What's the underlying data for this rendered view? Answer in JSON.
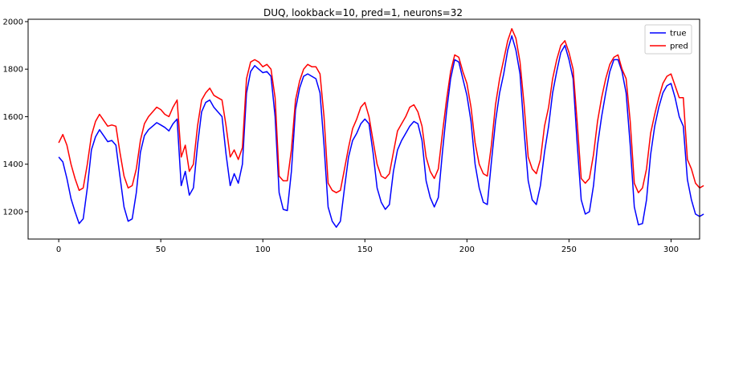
{
  "chart_data": {
    "type": "line",
    "title": "DUQ, lookback=10, pred=1, neurons=32",
    "xlabel": "",
    "ylabel": "",
    "xlim": [
      -15,
      314
    ],
    "ylim": [
      1085,
      2010
    ],
    "xticks": [
      0,
      50,
      100,
      150,
      200,
      250,
      300
    ],
    "yticks": [
      1200,
      1400,
      1600,
      1800,
      2000
    ],
    "grid": false,
    "legend_position": "top-right",
    "series": [
      {
        "name": "true",
        "color": "#0000ff",
        "points": [
          [
            0,
            1430
          ],
          [
            2,
            1410
          ],
          [
            4,
            1340
          ],
          [
            6,
            1255
          ],
          [
            8,
            1200
          ],
          [
            10,
            1150
          ],
          [
            12,
            1170
          ],
          [
            14,
            1300
          ],
          [
            16,
            1460
          ],
          [
            18,
            1515
          ],
          [
            20,
            1545
          ],
          [
            22,
            1520
          ],
          [
            24,
            1495
          ],
          [
            26,
            1500
          ],
          [
            28,
            1480
          ],
          [
            30,
            1350
          ],
          [
            32,
            1220
          ],
          [
            34,
            1160
          ],
          [
            36,
            1170
          ],
          [
            38,
            1280
          ],
          [
            40,
            1450
          ],
          [
            42,
            1520
          ],
          [
            44,
            1545
          ],
          [
            46,
            1560
          ],
          [
            48,
            1575
          ],
          [
            50,
            1565
          ],
          [
            52,
            1555
          ],
          [
            54,
            1540
          ],
          [
            56,
            1570
          ],
          [
            58,
            1590
          ],
          [
            60,
            1310
          ],
          [
            62,
            1370
          ],
          [
            64,
            1270
          ],
          [
            66,
            1300
          ],
          [
            68,
            1480
          ],
          [
            70,
            1620
          ],
          [
            72,
            1660
          ],
          [
            74,
            1670
          ],
          [
            76,
            1640
          ],
          [
            78,
            1620
          ],
          [
            80,
            1600
          ],
          [
            82,
            1440
          ],
          [
            84,
            1310
          ],
          [
            86,
            1360
          ],
          [
            88,
            1320
          ],
          [
            90,
            1400
          ],
          [
            92,
            1700
          ],
          [
            94,
            1790
          ],
          [
            96,
            1815
          ],
          [
            98,
            1800
          ],
          [
            100,
            1785
          ],
          [
            102,
            1790
          ],
          [
            104,
            1770
          ],
          [
            106,
            1600
          ],
          [
            108,
            1280
          ],
          [
            110,
            1210
          ],
          [
            112,
            1205
          ],
          [
            114,
            1370
          ],
          [
            116,
            1630
          ],
          [
            118,
            1720
          ],
          [
            120,
            1770
          ],
          [
            122,
            1780
          ],
          [
            124,
            1770
          ],
          [
            126,
            1760
          ],
          [
            128,
            1700
          ],
          [
            130,
            1480
          ],
          [
            132,
            1220
          ],
          [
            134,
            1160
          ],
          [
            136,
            1135
          ],
          [
            138,
            1160
          ],
          [
            140,
            1300
          ],
          [
            142,
            1430
          ],
          [
            144,
            1500
          ],
          [
            146,
            1530
          ],
          [
            148,
            1570
          ],
          [
            150,
            1590
          ],
          [
            152,
            1570
          ],
          [
            154,
            1450
          ],
          [
            156,
            1300
          ],
          [
            158,
            1240
          ],
          [
            160,
            1210
          ],
          [
            162,
            1230
          ],
          [
            164,
            1370
          ],
          [
            166,
            1460
          ],
          [
            168,
            1500
          ],
          [
            170,
            1530
          ],
          [
            172,
            1560
          ],
          [
            174,
            1580
          ],
          [
            176,
            1570
          ],
          [
            178,
            1500
          ],
          [
            180,
            1330
          ],
          [
            182,
            1260
          ],
          [
            184,
            1220
          ],
          [
            186,
            1260
          ],
          [
            188,
            1450
          ],
          [
            190,
            1620
          ],
          [
            192,
            1760
          ],
          [
            194,
            1840
          ],
          [
            196,
            1830
          ],
          [
            198,
            1760
          ],
          [
            200,
            1690
          ],
          [
            202,
            1580
          ],
          [
            204,
            1400
          ],
          [
            206,
            1300
          ],
          [
            208,
            1240
          ],
          [
            210,
            1230
          ],
          [
            212,
            1410
          ],
          [
            214,
            1580
          ],
          [
            216,
            1700
          ],
          [
            218,
            1780
          ],
          [
            220,
            1880
          ],
          [
            222,
            1940
          ],
          [
            224,
            1880
          ],
          [
            226,
            1780
          ],
          [
            228,
            1540
          ],
          [
            230,
            1330
          ],
          [
            232,
            1250
          ],
          [
            234,
            1230
          ],
          [
            236,
            1310
          ],
          [
            238,
            1450
          ],
          [
            240,
            1560
          ],
          [
            242,
            1700
          ],
          [
            244,
            1790
          ],
          [
            246,
            1870
          ],
          [
            248,
            1900
          ],
          [
            250,
            1840
          ],
          [
            252,
            1760
          ],
          [
            254,
            1490
          ],
          [
            256,
            1250
          ],
          [
            258,
            1190
          ],
          [
            260,
            1200
          ],
          [
            262,
            1310
          ],
          [
            264,
            1480
          ],
          [
            266,
            1600
          ],
          [
            268,
            1700
          ],
          [
            270,
            1790
          ],
          [
            272,
            1840
          ],
          [
            274,
            1840
          ],
          [
            276,
            1790
          ],
          [
            278,
            1700
          ],
          [
            280,
            1480
          ],
          [
            282,
            1220
          ],
          [
            284,
            1145
          ],
          [
            286,
            1150
          ],
          [
            288,
            1250
          ],
          [
            290,
            1440
          ],
          [
            292,
            1560
          ],
          [
            294,
            1640
          ],
          [
            296,
            1700
          ],
          [
            298,
            1730
          ],
          [
            300,
            1740
          ],
          [
            302,
            1680
          ],
          [
            304,
            1600
          ],
          [
            306,
            1560
          ],
          [
            308,
            1335
          ],
          [
            310,
            1250
          ],
          [
            312,
            1190
          ],
          [
            314,
            1180
          ],
          [
            316,
            1190
          ]
        ]
      },
      {
        "name": "pred",
        "color": "#ff0000",
        "points": [
          [
            0,
            1490
          ],
          [
            2,
            1525
          ],
          [
            4,
            1480
          ],
          [
            6,
            1400
          ],
          [
            8,
            1340
          ],
          [
            10,
            1290
          ],
          [
            12,
            1300
          ],
          [
            14,
            1400
          ],
          [
            16,
            1520
          ],
          [
            18,
            1580
          ],
          [
            20,
            1610
          ],
          [
            22,
            1585
          ],
          [
            24,
            1560
          ],
          [
            26,
            1565
          ],
          [
            28,
            1560
          ],
          [
            30,
            1450
          ],
          [
            32,
            1350
          ],
          [
            34,
            1300
          ],
          [
            36,
            1310
          ],
          [
            38,
            1380
          ],
          [
            40,
            1500
          ],
          [
            42,
            1570
          ],
          [
            44,
            1600
          ],
          [
            46,
            1620
          ],
          [
            48,
            1640
          ],
          [
            50,
            1630
          ],
          [
            52,
            1610
          ],
          [
            54,
            1600
          ],
          [
            56,
            1640
          ],
          [
            58,
            1670
          ],
          [
            60,
            1430
          ],
          [
            62,
            1480
          ],
          [
            64,
            1370
          ],
          [
            66,
            1400
          ],
          [
            68,
            1560
          ],
          [
            70,
            1670
          ],
          [
            72,
            1700
          ],
          [
            74,
            1720
          ],
          [
            76,
            1690
          ],
          [
            78,
            1680
          ],
          [
            80,
            1670
          ],
          [
            82,
            1560
          ],
          [
            84,
            1430
          ],
          [
            86,
            1460
          ],
          [
            88,
            1420
          ],
          [
            90,
            1470
          ],
          [
            92,
            1760
          ],
          [
            94,
            1830
          ],
          [
            96,
            1840
          ],
          [
            98,
            1830
          ],
          [
            100,
            1810
          ],
          [
            102,
            1820
          ],
          [
            104,
            1800
          ],
          [
            106,
            1680
          ],
          [
            108,
            1350
          ],
          [
            110,
            1330
          ],
          [
            112,
            1330
          ],
          [
            114,
            1460
          ],
          [
            116,
            1670
          ],
          [
            118,
            1750
          ],
          [
            120,
            1800
          ],
          [
            122,
            1820
          ],
          [
            124,
            1810
          ],
          [
            126,
            1810
          ],
          [
            128,
            1780
          ],
          [
            130,
            1600
          ],
          [
            132,
            1320
          ],
          [
            134,
            1290
          ],
          [
            136,
            1280
          ],
          [
            138,
            1290
          ],
          [
            140,
            1380
          ],
          [
            142,
            1470
          ],
          [
            144,
            1550
          ],
          [
            146,
            1590
          ],
          [
            148,
            1640
          ],
          [
            150,
            1660
          ],
          [
            152,
            1600
          ],
          [
            154,
            1500
          ],
          [
            156,
            1400
          ],
          [
            158,
            1350
          ],
          [
            160,
            1340
          ],
          [
            162,
            1360
          ],
          [
            164,
            1450
          ],
          [
            166,
            1540
          ],
          [
            168,
            1570
          ],
          [
            170,
            1600
          ],
          [
            172,
            1640
          ],
          [
            174,
            1650
          ],
          [
            176,
            1620
          ],
          [
            178,
            1560
          ],
          [
            180,
            1430
          ],
          [
            182,
            1370
          ],
          [
            184,
            1340
          ],
          [
            186,
            1380
          ],
          [
            188,
            1530
          ],
          [
            190,
            1670
          ],
          [
            192,
            1790
          ],
          [
            194,
            1860
          ],
          [
            196,
            1850
          ],
          [
            198,
            1790
          ],
          [
            200,
            1740
          ],
          [
            202,
            1640
          ],
          [
            204,
            1490
          ],
          [
            206,
            1400
          ],
          [
            208,
            1360
          ],
          [
            210,
            1350
          ],
          [
            212,
            1480
          ],
          [
            214,
            1650
          ],
          [
            216,
            1760
          ],
          [
            218,
            1840
          ],
          [
            220,
            1920
          ],
          [
            222,
            1970
          ],
          [
            224,
            1930
          ],
          [
            226,
            1830
          ],
          [
            228,
            1650
          ],
          [
            230,
            1430
          ],
          [
            232,
            1380
          ],
          [
            234,
            1360
          ],
          [
            236,
            1420
          ],
          [
            238,
            1560
          ],
          [
            240,
            1640
          ],
          [
            242,
            1760
          ],
          [
            244,
            1840
          ],
          [
            246,
            1900
          ],
          [
            248,
            1920
          ],
          [
            250,
            1870
          ],
          [
            252,
            1800
          ],
          [
            254,
            1580
          ],
          [
            256,
            1340
          ],
          [
            258,
            1320
          ],
          [
            260,
            1340
          ],
          [
            262,
            1440
          ],
          [
            264,
            1580
          ],
          [
            266,
            1680
          ],
          [
            268,
            1760
          ],
          [
            270,
            1820
          ],
          [
            272,
            1850
          ],
          [
            274,
            1860
          ],
          [
            276,
            1800
          ],
          [
            278,
            1760
          ],
          [
            280,
            1580
          ],
          [
            282,
            1320
          ],
          [
            284,
            1280
          ],
          [
            286,
            1300
          ],
          [
            288,
            1380
          ],
          [
            290,
            1530
          ],
          [
            292,
            1610
          ],
          [
            294,
            1680
          ],
          [
            296,
            1740
          ],
          [
            298,
            1770
          ],
          [
            300,
            1780
          ],
          [
            302,
            1730
          ],
          [
            304,
            1680
          ],
          [
            306,
            1680
          ],
          [
            308,
            1420
          ],
          [
            310,
            1380
          ],
          [
            312,
            1320
          ],
          [
            314,
            1300
          ],
          [
            316,
            1310
          ]
        ]
      }
    ]
  }
}
